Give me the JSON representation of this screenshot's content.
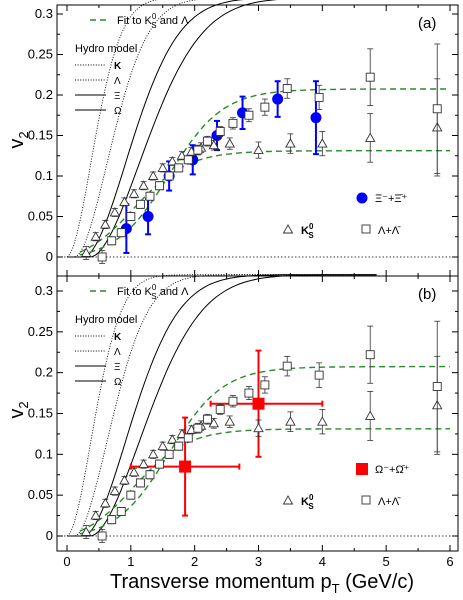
{
  "chart_data": [
    {
      "type": "line",
      "panel_label": "(a)",
      "ylabel": "v",
      "ylabel_sub": "2",
      "ylim": [
        -0.02,
        0.33
      ],
      "xlim": [
        -0.15,
        6.3
      ],
      "yticks": [
        "0",
        "0.05",
        "0.1",
        "0.15",
        "0.2",
        "0.25",
        "0.3"
      ],
      "fit_legend": {
        "prefix": "Fit to K",
        "sup": "0",
        "sub": "S",
        "suffix": " and Λ"
      },
      "hydro_title": "Hydro model",
      "hydro_legend": [
        "K",
        "Λ",
        "Ξ",
        "Ω"
      ],
      "species_legend": {
        "marker_text": "Ξ⁻+Ξ̄⁺",
        "ks_text": "K",
        "ks_sup": "0",
        "ks_sub": "S",
        "lambda_text": "Λ+Λ̄"
      },
      "series": [
        {
          "name": "Ξ⁻+Ξ̄⁺",
          "marker": "circle",
          "color": "#0000ff",
          "x": [
            0.93,
            1.27,
            1.6,
            1.97,
            2.35,
            2.75,
            3.3,
            3.9
          ],
          "y": [
            0.035,
            0.05,
            0.1,
            0.12,
            0.15,
            0.178,
            0.195,
            0.172
          ],
          "err": [
            0.03,
            0.022,
            0.018,
            0.018,
            0.018,
            0.02,
            0.022,
            0.045
          ]
        },
        {
          "name": "K⁰S",
          "marker": "triangle",
          "x": [
            0.3,
            0.45,
            0.6,
            0.75,
            0.9,
            1.05,
            1.2,
            1.35,
            1.5,
            1.65,
            1.8,
            1.95,
            2.1,
            2.3,
            2.55,
            3.0,
            3.5,
            4.0,
            4.75,
            5.8
          ],
          "y": [
            0.005,
            0.025,
            0.04,
            0.055,
            0.068,
            0.078,
            0.088,
            0.1,
            0.11,
            0.118,
            0.125,
            0.13,
            0.135,
            0.138,
            0.14,
            0.132,
            0.14,
            0.14,
            0.147,
            0.16
          ],
          "err": [
            0.008,
            0.005,
            0.005,
            0.005,
            0.005,
            0.005,
            0.005,
            0.005,
            0.005,
            0.005,
            0.005,
            0.005,
            0.006,
            0.006,
            0.007,
            0.01,
            0.012,
            0.015,
            0.03,
            0.06
          ]
        },
        {
          "name": "Λ+Λ̄",
          "marker": "square",
          "x": [
            0.55,
            0.7,
            0.85,
            1.0,
            1.15,
            1.3,
            1.45,
            1.6,
            1.75,
            1.9,
            2.05,
            2.2,
            2.4,
            2.6,
            2.85,
            3.1,
            3.45,
            3.95,
            4.75,
            5.8
          ],
          "y": [
            0.0,
            0.02,
            0.03,
            0.05,
            0.065,
            0.075,
            0.088,
            0.1,
            0.11,
            0.12,
            0.132,
            0.143,
            0.155,
            0.165,
            0.175,
            0.185,
            0.208,
            0.197,
            0.222,
            0.183
          ],
          "err": [
            0.008,
            0.005,
            0.005,
            0.005,
            0.005,
            0.005,
            0.005,
            0.005,
            0.005,
            0.005,
            0.006,
            0.006,
            0.006,
            0.007,
            0.008,
            0.01,
            0.012,
            0.015,
            0.035,
            0.08
          ]
        }
      ]
    },
    {
      "type": "line",
      "panel_label": "(b)",
      "ylabel": "v",
      "ylabel_sub": "2",
      "xlabel": "Transverse momentum p",
      "xlabel_sub": "T",
      "xlabel_unit": " (GeV/c)",
      "ylim": [
        -0.02,
        0.33
      ],
      "xlim": [
        -0.15,
        6.3
      ],
      "xticks": [
        "0",
        "1",
        "2",
        "3",
        "4",
        "5",
        "6"
      ],
      "yticks": [
        "0",
        "0.05",
        "0.1",
        "0.15",
        "0.2",
        "0.25",
        "0.3"
      ],
      "fit_legend": {
        "prefix": "Fit to K",
        "sup": "0",
        "sub": "S",
        "suffix": " and Λ"
      },
      "hydro_title": "Hydro model",
      "hydro_legend": [
        "K",
        "Λ",
        "Ξ",
        "Ω"
      ],
      "species_legend": {
        "marker_text": "Ω⁻+Ω̄⁺",
        "ks_text": "K",
        "ks_sup": "0",
        "ks_sub": "S",
        "lambda_text": "Λ+Λ̄"
      },
      "series": [
        {
          "name": "Ω⁻+Ω̄⁺",
          "marker": "square-filled",
          "color": "#ff0000",
          "x": [
            1.85,
            3.0
          ],
          "y": [
            0.085,
            0.162
          ],
          "err": [
            0.06,
            0.065
          ],
          "xerr_lo": [
            0.85,
            0.75
          ],
          "xerr_hi": [
            0.85,
            1.0
          ]
        },
        {
          "name": "K⁰S",
          "marker": "triangle",
          "x": [
            0.3,
            0.45,
            0.6,
            0.75,
            0.9,
            1.05,
            1.2,
            1.35,
            1.5,
            1.65,
            1.8,
            1.95,
            2.1,
            2.3,
            2.55,
            3.0,
            3.5,
            4.0,
            4.75,
            5.8
          ],
          "y": [
            0.005,
            0.025,
            0.04,
            0.055,
            0.068,
            0.078,
            0.088,
            0.1,
            0.11,
            0.118,
            0.125,
            0.13,
            0.135,
            0.138,
            0.14,
            0.132,
            0.14,
            0.14,
            0.147,
            0.16
          ],
          "err": [
            0.008,
            0.005,
            0.005,
            0.005,
            0.005,
            0.005,
            0.005,
            0.005,
            0.005,
            0.005,
            0.005,
            0.005,
            0.006,
            0.006,
            0.007,
            0.01,
            0.012,
            0.015,
            0.03,
            0.06
          ]
        },
        {
          "name": "Λ+Λ̄",
          "marker": "square",
          "x": [
            0.55,
            0.7,
            0.85,
            1.0,
            1.15,
            1.3,
            1.45,
            1.6,
            1.75,
            1.9,
            2.05,
            2.2,
            2.4,
            2.6,
            2.85,
            3.1,
            3.45,
            3.95,
            4.75,
            5.8
          ],
          "y": [
            0.0,
            0.02,
            0.03,
            0.05,
            0.065,
            0.075,
            0.088,
            0.1,
            0.11,
            0.12,
            0.132,
            0.143,
            0.155,
            0.165,
            0.175,
            0.185,
            0.208,
            0.197,
            0.222,
            0.183
          ],
          "err": [
            0.008,
            0.005,
            0.005,
            0.005,
            0.005,
            0.005,
            0.005,
            0.005,
            0.005,
            0.005,
            0.006,
            0.006,
            0.006,
            0.007,
            0.008,
            0.01,
            0.012,
            0.015,
            0.035,
            0.08
          ]
        }
      ]
    }
  ]
}
